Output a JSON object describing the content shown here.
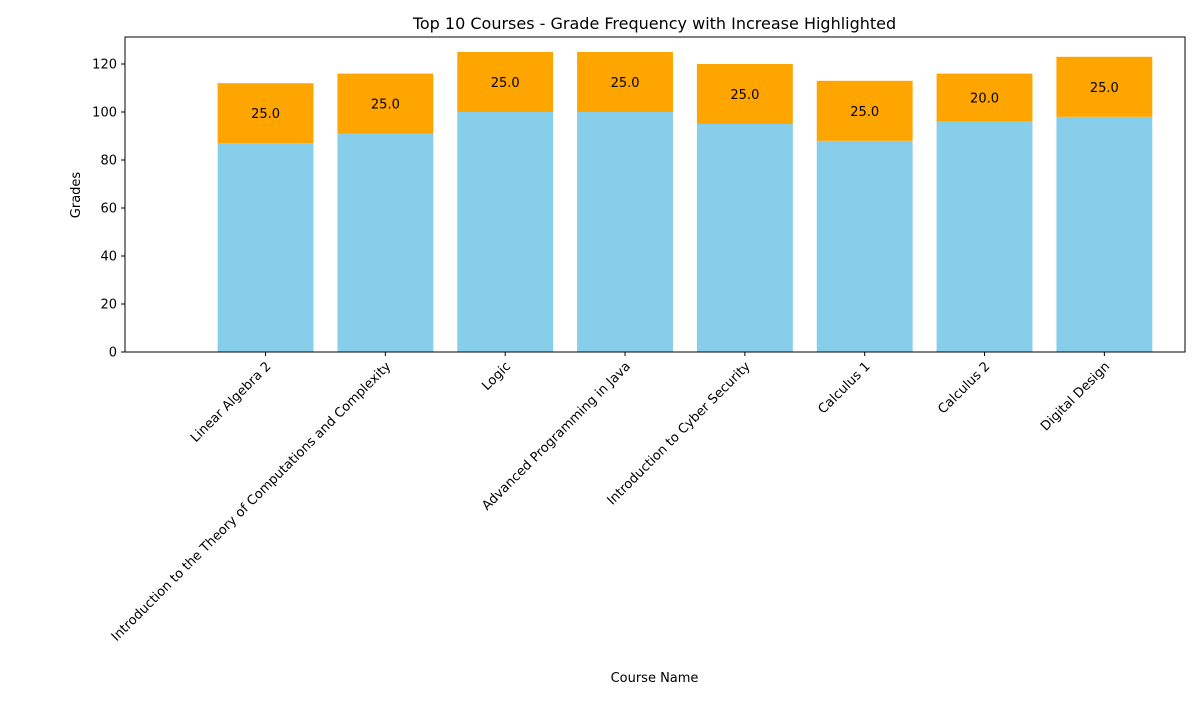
{
  "chart_data": {
    "type": "bar",
    "stacked": true,
    "title": "Top 10 Courses - Grade Frequency with Increase Highlighted",
    "xlabel": "Course Name",
    "ylabel": "Grades",
    "ylim": [
      0,
      131.25
    ],
    "yticks": [
      0,
      20,
      40,
      60,
      80,
      100,
      120
    ],
    "grid": false,
    "categories": [
      "Linear Algebra 2",
      "Introduction to the Theory of Computations and Complexity",
      "Logic",
      "Advanced Programming in Java",
      "Introduction to Cyber Security",
      "Calculus 1",
      "Calculus 2",
      "Digital Design"
    ],
    "series": [
      {
        "values": [
          87,
          91,
          100,
          100,
          95,
          88,
          96,
          98
        ],
        "color": "#87CEEB"
      },
      {
        "values": [
          25,
          25,
          25,
          25,
          25,
          25,
          20,
          25
        ],
        "color": "#FFA500",
        "data_labels": [
          "25.0",
          "25.0",
          "25.0",
          "25.0",
          "25.0",
          "25.0",
          "20.0",
          "25.0"
        ]
      }
    ]
  }
}
